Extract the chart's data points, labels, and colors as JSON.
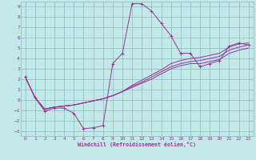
{
  "xlabel": "Windchill (Refroidissement éolien,°C)",
  "background_color": "#c2e8e8",
  "grid_color": "#88bbbb",
  "line_color": "#993399",
  "xlim": [
    -0.5,
    23.5
  ],
  "ylim": [
    -3.5,
    9.5
  ],
  "xticks": [
    0,
    1,
    2,
    3,
    4,
    5,
    6,
    7,
    8,
    9,
    10,
    11,
    12,
    13,
    14,
    15,
    16,
    17,
    18,
    19,
    20,
    21,
    22,
    23
  ],
  "yticks": [
    -3,
    -2,
    -1,
    0,
    1,
    2,
    3,
    4,
    5,
    6,
    7,
    8,
    9
  ],
  "hours": [
    0,
    1,
    2,
    3,
    4,
    5,
    6,
    7,
    8,
    9,
    10,
    11,
    12,
    13,
    14,
    15,
    16,
    17,
    18,
    19,
    20,
    21,
    22,
    23
  ],
  "windchill": [
    2.2,
    0.2,
    -1.1,
    -0.8,
    -0.8,
    -1.3,
    -2.8,
    -2.7,
    -2.5,
    3.5,
    4.5,
    9.3,
    9.3,
    8.6,
    7.4,
    6.2,
    4.5,
    4.5,
    3.2,
    3.5,
    3.8,
    5.2,
    5.5,
    5.3
  ],
  "line1": [
    2.2,
    0.2,
    -0.9,
    -0.7,
    -0.6,
    -0.5,
    -0.3,
    -0.1,
    0.1,
    0.4,
    0.8,
    1.2,
    1.6,
    2.0,
    2.5,
    3.0,
    3.3,
    3.5,
    3.5,
    3.7,
    3.9,
    4.5,
    4.8,
    5.0
  ],
  "line2": [
    2.2,
    0.2,
    -0.9,
    -0.7,
    -0.6,
    -0.5,
    -0.3,
    -0.1,
    0.1,
    0.4,
    0.8,
    1.3,
    1.7,
    2.2,
    2.7,
    3.2,
    3.5,
    3.7,
    3.8,
    4.0,
    4.2,
    4.8,
    5.1,
    5.3
  ],
  "line3": [
    2.2,
    0.2,
    -0.9,
    -0.7,
    -0.6,
    -0.5,
    -0.3,
    -0.1,
    0.1,
    0.4,
    0.8,
    1.4,
    1.9,
    2.4,
    2.9,
    3.5,
    3.8,
    4.0,
    4.1,
    4.3,
    4.5,
    5.1,
    5.4,
    5.5
  ]
}
